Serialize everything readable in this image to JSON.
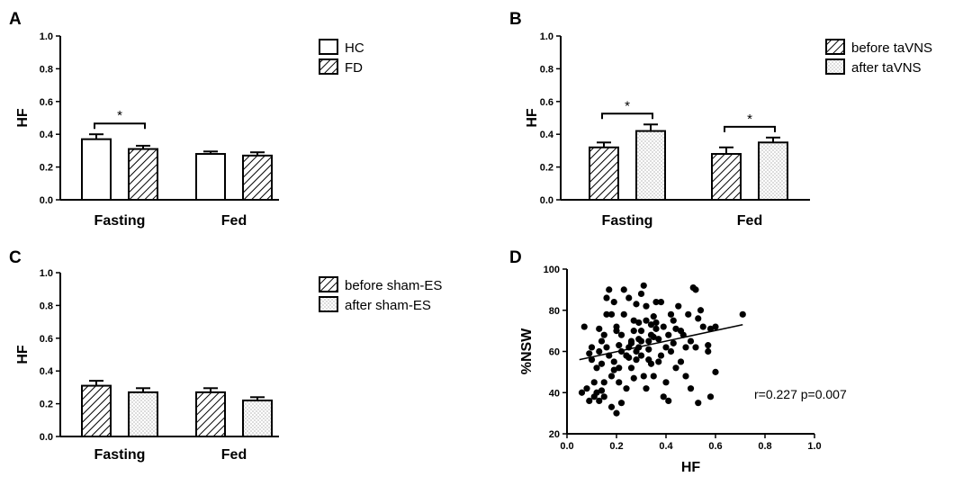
{
  "chart_data": [
    {
      "panel": "A",
      "type": "bar",
      "ylabel": "HF",
      "ylim": [
        0,
        1.0
      ],
      "yticks": [
        "0.0",
        "0.2",
        "0.4",
        "0.6",
        "0.8",
        "1.0"
      ],
      "categories": [
        "Fasting",
        "Fed"
      ],
      "series": [
        {
          "name": "HC",
          "pattern": "white",
          "values": [
            0.37,
            0.28
          ],
          "errors": [
            0.03,
            0.015
          ]
        },
        {
          "name": "FD",
          "pattern": "hatch",
          "values": [
            0.31,
            0.27
          ],
          "errors": [
            0.02,
            0.02
          ]
        }
      ],
      "significance": [
        {
          "category": 0,
          "label": "*"
        }
      ]
    },
    {
      "panel": "B",
      "type": "bar",
      "ylabel": "HF",
      "ylim": [
        0,
        1.0
      ],
      "yticks": [
        "0.0",
        "0.2",
        "0.4",
        "0.6",
        "0.8",
        "1.0"
      ],
      "categories": [
        "Fasting",
        "Fed"
      ],
      "series": [
        {
          "name": "before taVNS",
          "pattern": "hatch",
          "values": [
            0.32,
            0.28
          ],
          "errors": [
            0.03,
            0.04
          ]
        },
        {
          "name": "after taVNS",
          "pattern": "dots",
          "values": [
            0.42,
            0.35
          ],
          "errors": [
            0.04,
            0.03
          ]
        }
      ],
      "significance": [
        {
          "category": 0,
          "label": "*"
        },
        {
          "category": 1,
          "label": "*"
        }
      ]
    },
    {
      "panel": "C",
      "type": "bar",
      "ylabel": "HF",
      "ylim": [
        0,
        1.0
      ],
      "yticks": [
        "0.0",
        "0.2",
        "0.4",
        "0.6",
        "0.8",
        "1.0"
      ],
      "categories": [
        "Fasting",
        "Fed"
      ],
      "series": [
        {
          "name": "before sham-ES",
          "pattern": "hatch",
          "values": [
            0.31,
            0.27
          ],
          "errors": [
            0.03,
            0.025
          ]
        },
        {
          "name": "after sham-ES",
          "pattern": "dots",
          "values": [
            0.27,
            0.22
          ],
          "errors": [
            0.025,
            0.02
          ]
        }
      ],
      "significance": []
    },
    {
      "panel": "D",
      "type": "scatter",
      "xlabel": "HF",
      "ylabel": "%NSW",
      "xlim": [
        0,
        1.0
      ],
      "ylim": [
        20,
        100
      ],
      "xticks": [
        "0.0",
        "0.2",
        "0.4",
        "0.6",
        "0.8",
        "1.0"
      ],
      "yticks": [
        "20",
        "40",
        "60",
        "80",
        "100"
      ],
      "annotation": "r=0.227 p=0.007",
      "trendline": {
        "x": [
          0.05,
          0.71
        ],
        "y": [
          56,
          73
        ]
      },
      "points": [
        [
          0.07,
          72
        ],
        [
          0.1,
          62
        ],
        [
          0.1,
          56
        ],
        [
          0.11,
          45
        ],
        [
          0.12,
          40
        ],
        [
          0.13,
          60
        ],
        [
          0.14,
          54
        ],
        [
          0.15,
          38
        ],
        [
          0.16,
          62
        ],
        [
          0.17,
          90
        ],
        [
          0.18,
          78
        ],
        [
          0.2,
          72
        ],
        [
          0.21,
          45
        ],
        [
          0.22,
          68
        ],
        [
          0.23,
          90
        ],
        [
          0.24,
          58
        ],
        [
          0.25,
          86
        ],
        [
          0.26,
          65
        ],
        [
          0.27,
          47
        ],
        [
          0.28,
          83
        ],
        [
          0.29,
          62
        ],
        [
          0.3,
          70
        ],
        [
          0.31,
          92
        ],
        [
          0.32,
          75
        ],
        [
          0.33,
          56
        ],
        [
          0.34,
          68
        ],
        [
          0.35,
          48
        ],
        [
          0.36,
          71
        ],
        [
          0.38,
          84
        ],
        [
          0.4,
          62
        ],
        [
          0.42,
          60
        ],
        [
          0.43,
          75
        ],
        [
          0.45,
          82
        ],
        [
          0.47,
          68
        ],
        [
          0.49,
          78
        ],
        [
          0.5,
          65
        ],
        [
          0.51,
          91
        ],
        [
          0.53,
          35
        ],
        [
          0.55,
          72
        ],
        [
          0.57,
          60
        ],
        [
          0.58,
          38
        ],
        [
          0.6,
          72
        ],
        [
          0.08,
          42
        ],
        [
          0.09,
          36
        ],
        [
          0.12,
          52
        ],
        [
          0.14,
          65
        ],
        [
          0.15,
          45
        ],
        [
          0.16,
          78
        ],
        [
          0.18,
          33
        ],
        [
          0.19,
          55
        ],
        [
          0.2,
          70
        ],
        [
          0.21,
          52
        ],
        [
          0.22,
          60
        ],
        [
          0.24,
          42
        ],
        [
          0.25,
          62
        ],
        [
          0.27,
          70
        ],
        [
          0.28,
          56
        ],
        [
          0.3,
          65
        ],
        [
          0.31,
          48
        ],
        [
          0.33,
          65
        ],
        [
          0.35,
          67
        ],
        [
          0.37,
          55
        ],
        [
          0.39,
          72
        ],
        [
          0.41,
          68
        ],
        [
          0.44,
          52
        ],
        [
          0.48,
          48
        ],
        [
          0.52,
          62
        ],
        [
          0.54,
          80
        ],
        [
          0.16,
          86
        ],
        [
          0.19,
          84
        ],
        [
          0.23,
          78
        ],
        [
          0.26,
          64
        ],
        [
          0.29,
          74
        ],
        [
          0.32,
          82
        ],
        [
          0.34,
          73
        ],
        [
          0.36,
          84
        ],
        [
          0.4,
          45
        ],
        [
          0.46,
          55
        ],
        [
          0.06,
          40
        ],
        [
          0.11,
          38
        ],
        [
          0.13,
          36
        ],
        [
          0.17,
          58
        ],
        [
          0.22,
          35
        ],
        [
          0.26,
          52
        ],
        [
          0.3,
          58
        ],
        [
          0.32,
          42
        ],
        [
          0.37,
          66
        ],
        [
          0.42,
          78
        ],
        [
          0.5,
          42
        ],
        [
          0.57,
          63
        ],
        [
          0.09,
          59
        ],
        [
          0.14,
          41
        ],
        [
          0.2,
          30
        ],
        [
          0.24,
          58
        ],
        [
          0.28,
          60
        ],
        [
          0.33,
          61
        ],
        [
          0.38,
          58
        ],
        [
          0.43,
          64
        ],
        [
          0.48,
          62
        ],
        [
          0.15,
          68
        ],
        [
          0.18,
          48
        ],
        [
          0.21,
          63
        ],
        [
          0.27,
          75
        ],
        [
          0.3,
          88
        ],
        [
          0.35,
          77
        ],
        [
          0.44,
          71
        ],
        [
          0.53,
          76
        ],
        [
          0.6,
          50
        ],
        [
          0.71,
          78
        ],
        [
          0.13,
          71
        ],
        [
          0.19,
          51
        ],
        [
          0.25,
          57
        ],
        [
          0.29,
          66
        ],
        [
          0.34,
          54
        ],
        [
          0.39,
          38
        ],
        [
          0.46,
          70
        ],
        [
          0.52,
          90
        ],
        [
          0.58,
          71
        ],
        [
          0.36,
          74
        ],
        [
          0.41,
          36
        ]
      ]
    }
  ]
}
